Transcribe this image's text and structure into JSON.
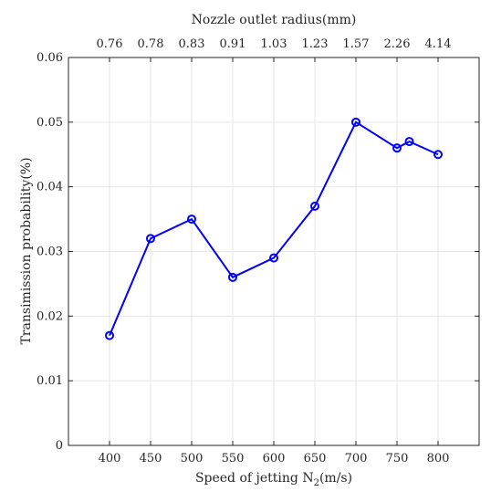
{
  "chart_data": {
    "type": "line",
    "xlabel_main": "Speed of jetting N",
    "xlabel_sub": "2",
    "xlabel_tail": "(m/s)",
    "ylabel": "Transimission probability(%)",
    "top_xlabel": "Nozzle outlet radius(mm)",
    "xlim": [
      350,
      850
    ],
    "ylim": [
      0,
      0.06
    ],
    "x_ticks": [
      400,
      450,
      500,
      550,
      600,
      650,
      700,
      750,
      800
    ],
    "x_tick_labels": [
      "400",
      "450",
      "500",
      "550",
      "600",
      "650",
      "700",
      "750",
      "800"
    ],
    "y_ticks": [
      0,
      0.01,
      0.02,
      0.03,
      0.04,
      0.05,
      0.06
    ],
    "y_tick_labels": [
      "0",
      "0.01",
      "0.02",
      "0.03",
      "0.04",
      "0.05",
      "0.06"
    ],
    "top_ticks": [
      400,
      450,
      500,
      550,
      600,
      650,
      700,
      750,
      800
    ],
    "top_tick_labels": [
      "0.76",
      "0.78",
      "0.83",
      "0.91",
      "1.03",
      "1.23",
      "1.57",
      "2.26",
      "4.14"
    ],
    "grid": true,
    "line_color": "#0000ff",
    "series": [
      {
        "x": [
          400,
          450,
          500,
          550,
          600,
          650,
          700,
          750,
          765,
          800
        ],
        "y": [
          0.017,
          0.032,
          0.035,
          0.026,
          0.029,
          0.037,
          0.05,
          0.046,
          0.047,
          0.045
        ]
      }
    ]
  }
}
